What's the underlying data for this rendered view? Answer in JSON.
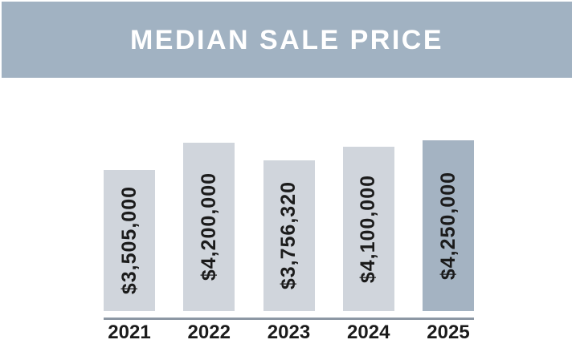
{
  "chart_data": {
    "type": "bar",
    "title": "MEDIAN SALE PRICE",
    "categories": [
      "2021",
      "2022",
      "2023",
      "2024",
      "2025"
    ],
    "values": [
      3505000,
      4200000,
      3756320,
      4100000,
      4250000
    ],
    "value_labels": [
      "$3,505,000",
      "$4,200,000",
      "$3,756,320",
      "$4,100,000",
      "$4,250,000"
    ],
    "xlabel": "",
    "ylabel": "",
    "ylim": [
      0,
      4250000
    ],
    "grid": false,
    "legend_position": "none",
    "value_label_orientation": "vertical-bottom-to-top",
    "highlighted_category": "2025",
    "colors": {
      "banner_background": "#a1b2c2",
      "title_text": "#ffffff",
      "bar_default": "#d0d5dc",
      "bar_highlight": "#a4b3c2",
      "axis_line": "#8c97a4",
      "label_text": "#1b1b1b",
      "page_background": "#ffffff"
    }
  }
}
